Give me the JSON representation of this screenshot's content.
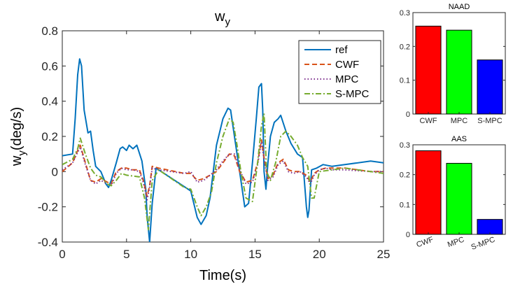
{
  "chart_data": [
    {
      "type": "line",
      "title": "w",
      "title_sub": "y",
      "xlabel": "Time(s)",
      "ylabel": "w",
      "ylabel_sub": "y",
      "ylabel_unit": "(deg/s)",
      "xlim": [
        0,
        25
      ],
      "ylim": [
        -0.4,
        0.8
      ],
      "xticks": [
        "0",
        "5",
        "10",
        "15",
        "20",
        "25"
      ],
      "yticks": [
        "-0.4",
        "-0.2",
        "0",
        "0.2",
        "0.4",
        "0.6",
        "0.8"
      ],
      "legend_position": "top-right",
      "series": [
        {
          "name": "ref",
          "color": "#0072BD",
          "dash": "solid",
          "x": [
            0,
            0.8,
            1.0,
            1.2,
            1.35,
            1.5,
            1.7,
            2.0,
            2.2,
            2.4,
            2.6,
            3.0,
            3.4,
            3.6,
            3.8,
            4.2,
            4.5,
            4.7,
            5.0,
            5.2,
            5.5,
            5.8,
            6.2,
            6.5,
            6.6,
            6.8,
            7.0,
            7.3,
            10.0,
            10.5,
            10.8,
            11.2,
            11.5,
            12.0,
            12.5,
            12.9,
            13.1,
            13.4,
            13.8,
            14.2,
            14.5,
            14.8,
            15.1,
            15.3,
            15.5,
            15.6,
            15.7,
            15.85,
            16.0,
            16.2,
            16.5,
            16.8,
            17.0,
            17.4,
            17.8,
            18.3,
            18.7,
            19.0,
            19.1,
            19.2,
            19.4,
            19.8,
            20.3,
            21.0,
            22.0,
            24.0,
            25.0
          ],
          "y": [
            0.09,
            0.1,
            0.3,
            0.55,
            0.64,
            0.6,
            0.35,
            0.22,
            0.23,
            0.12,
            0.03,
            0.0,
            -0.07,
            -0.09,
            -0.05,
            0.05,
            0.13,
            0.14,
            0.12,
            0.15,
            0.13,
            0.15,
            0.06,
            -0.1,
            -0.25,
            -0.4,
            -0.18,
            0.02,
            -0.11,
            -0.26,
            -0.3,
            -0.25,
            -0.15,
            0.15,
            0.3,
            0.36,
            0.35,
            0.2,
            0.0,
            -0.2,
            -0.18,
            0.05,
            0.3,
            0.48,
            0.5,
            0.35,
            0.0,
            -0.1,
            0.05,
            0.2,
            0.28,
            0.3,
            0.32,
            0.23,
            0.16,
            0.1,
            0.08,
            -0.2,
            -0.26,
            -0.22,
            0.01,
            0.02,
            0.04,
            0.03,
            0.04,
            0.06,
            0.05
          ]
        },
        {
          "name": "CWF",
          "color": "#D95319",
          "dash": "dashed",
          "x": [
            0,
            0.8,
            1.2,
            1.4,
            1.8,
            2.2,
            2.6,
            3.0,
            3.5,
            3.8,
            4.2,
            4.6,
            5.0,
            5.5,
            6.0,
            6.3,
            6.6,
            6.8,
            7.0,
            7.5,
            9.5,
            10.0,
            10.5,
            11.0,
            11.5,
            12.0,
            12.5,
            13.0,
            13.4,
            13.8,
            14.3,
            14.8,
            15.2,
            15.5,
            15.7,
            16.0,
            16.4,
            16.8,
            17.2,
            17.6,
            18.0,
            18.5,
            19.0,
            19.3,
            19.6,
            20.0,
            20.5,
            21.0,
            22.0,
            24.0,
            25.0
          ],
          "y": [
            0.0,
            0.05,
            0.12,
            0.15,
            0.05,
            -0.05,
            -0.06,
            -0.04,
            -0.06,
            -0.07,
            0.0,
            0.02,
            0.02,
            0.01,
            0.01,
            -0.05,
            -0.14,
            -0.08,
            0.03,
            0.02,
            -0.01,
            -0.01,
            -0.05,
            -0.04,
            -0.02,
            0.0,
            0.05,
            0.1,
            0.09,
            0.0,
            -0.06,
            -0.05,
            0.05,
            0.18,
            0.08,
            -0.04,
            -0.02,
            0.05,
            0.07,
            0.01,
            0.0,
            0.0,
            -0.02,
            -0.06,
            -0.01,
            0.01,
            0.02,
            0.02,
            0.02,
            0.0,
            0.0
          ]
        },
        {
          "name": "MPC",
          "color": "#7E2F8E",
          "dash": "dotted",
          "x": [
            0,
            0.8,
            1.2,
            1.4,
            1.8,
            2.2,
            2.6,
            3.0,
            3.5,
            3.8,
            4.2,
            4.6,
            5.0,
            5.5,
            6.0,
            6.3,
            6.6,
            6.8,
            7.0,
            7.5,
            9.5,
            10.0,
            10.5,
            11.0,
            11.5,
            12.0,
            12.5,
            13.0,
            13.4,
            13.8,
            14.3,
            14.8,
            15.2,
            15.5,
            15.7,
            16.0,
            16.4,
            16.8,
            17.2,
            17.6,
            18.0,
            18.5,
            19.0,
            19.3,
            19.6,
            20.0,
            20.5,
            21.0,
            22.0,
            24.0,
            25.0
          ],
          "y": [
            0.01,
            0.05,
            0.11,
            0.14,
            0.04,
            -0.05,
            -0.07,
            -0.05,
            -0.07,
            -0.08,
            -0.01,
            0.02,
            0.01,
            0.01,
            0.0,
            -0.06,
            -0.16,
            -0.09,
            0.02,
            0.01,
            -0.01,
            0.0,
            -0.06,
            -0.05,
            -0.02,
            0.01,
            0.06,
            0.1,
            0.1,
            0.01,
            -0.07,
            -0.06,
            0.04,
            0.17,
            0.07,
            -0.05,
            -0.03,
            0.04,
            0.06,
            0.0,
            -0.01,
            0.0,
            -0.03,
            -0.07,
            -0.02,
            0.01,
            0.02,
            0.01,
            0.01,
            0.0,
            0.0
          ]
        },
        {
          "name": "S-MPC",
          "color": "#77AC30",
          "dash": "dashdot",
          "x": [
            0,
            0.8,
            1.2,
            1.4,
            1.8,
            2.2,
            2.6,
            3.0,
            3.5,
            3.8,
            4.2,
            4.6,
            5.0,
            6.0,
            6.4,
            6.7,
            7.0,
            7.5,
            9.5,
            10.0,
            10.5,
            10.8,
            11.2,
            11.6,
            12.0,
            12.5,
            13.0,
            13.3,
            13.6,
            13.9,
            14.3,
            14.8,
            15.2,
            15.5,
            15.7,
            15.9,
            16.2,
            16.6,
            17.0,
            17.4,
            17.8,
            18.3,
            18.7,
            19.1,
            19.4,
            19.6,
            20.0,
            21.0,
            22.0,
            24.0,
            25.0
          ],
          "y": [
            0.04,
            0.07,
            0.13,
            0.19,
            0.1,
            0.02,
            -0.02,
            -0.03,
            -0.07,
            -0.08,
            -0.05,
            -0.01,
            -0.02,
            -0.03,
            -0.15,
            -0.33,
            -0.05,
            0.01,
            -0.09,
            -0.1,
            -0.2,
            -0.25,
            -0.2,
            -0.12,
            0.05,
            0.2,
            0.3,
            0.28,
            0.15,
            0.0,
            -0.15,
            -0.17,
            0.05,
            0.26,
            0.33,
            0.0,
            -0.05,
            0.05,
            0.2,
            0.23,
            0.2,
            0.15,
            0.08,
            0.03,
            -0.15,
            -0.15,
            0.0,
            0.01,
            0.02,
            0.0,
            -0.01
          ]
        }
      ]
    },
    {
      "type": "bar",
      "title": "NAAD",
      "categories": [
        "CWF",
        "MPC",
        "S-MPC"
      ],
      "values": [
        0.26,
        0.248,
        0.16
      ],
      "colors": [
        "#FF0000",
        "#00FF00",
        "#0000FF"
      ],
      "ylim": [
        0,
        0.3
      ],
      "yticks": [
        "0",
        "0.1",
        "0.2",
        "0.3"
      ],
      "xtick_rotation": "none"
    },
    {
      "type": "bar",
      "title": "AAS",
      "categories": [
        "CWF",
        "MPC",
        "S-MPC"
      ],
      "values": [
        0.28,
        0.238,
        0.05
      ],
      "colors": [
        "#FF0000",
        "#00FF00",
        "#0000FF"
      ],
      "ylim": [
        0,
        0.3
      ],
      "yticks": [
        "0",
        "0.1",
        "0.2",
        "0.3"
      ],
      "xtick_rotation": "rotated"
    }
  ]
}
